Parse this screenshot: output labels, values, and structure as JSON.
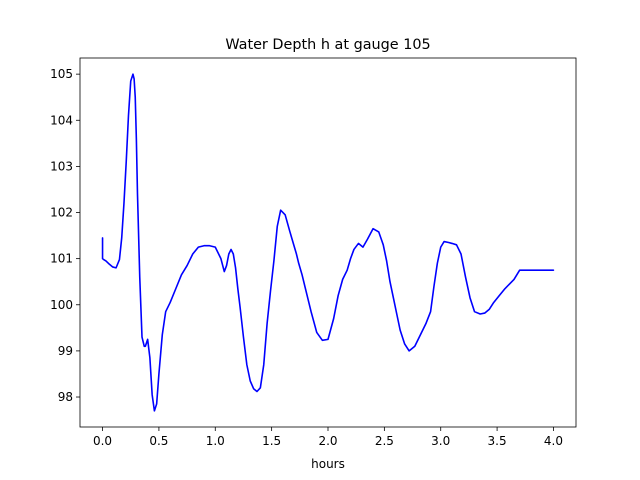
{
  "chart_data": {
    "type": "line",
    "title": "Water Depth h at gauge 105",
    "xlabel": "hours",
    "ylabel": "",
    "xlim": [
      -0.2,
      4.2
    ],
    "ylim": [
      97.35,
      105.35
    ],
    "xticks": [
      {
        "value": 0.0,
        "label": "0.0"
      },
      {
        "value": 0.5,
        "label": "0.5"
      },
      {
        "value": 1.0,
        "label": "1.0"
      },
      {
        "value": 1.5,
        "label": "1.5"
      },
      {
        "value": 2.0,
        "label": "2.0"
      },
      {
        "value": 2.5,
        "label": "2.5"
      },
      {
        "value": 3.0,
        "label": "3.0"
      },
      {
        "value": 3.5,
        "label": "3.5"
      },
      {
        "value": 4.0,
        "label": "4.0"
      }
    ],
    "yticks": [
      {
        "value": 98,
        "label": "98"
      },
      {
        "value": 99,
        "label": "99"
      },
      {
        "value": 100,
        "label": "100"
      },
      {
        "value": 101,
        "label": "101"
      },
      {
        "value": 102,
        "label": "102"
      },
      {
        "value": 103,
        "label": "103"
      },
      {
        "value": 104,
        "label": "104"
      },
      {
        "value": 105,
        "label": "105"
      }
    ],
    "grid": false,
    "series": [
      {
        "color": "#0000ff",
        "x": [
          0.0,
          0.0,
          0.01,
          0.03,
          0.06,
          0.09,
          0.12,
          0.15,
          0.17,
          0.19,
          0.21,
          0.23,
          0.25,
          0.27,
          0.28,
          0.29,
          0.3,
          0.31,
          0.33,
          0.35,
          0.37,
          0.38,
          0.4,
          0.42,
          0.44,
          0.46,
          0.48,
          0.5,
          0.53,
          0.56,
          0.6,
          0.65,
          0.7,
          0.75,
          0.8,
          0.85,
          0.9,
          0.95,
          1.0,
          1.05,
          1.08,
          1.1,
          1.12,
          1.14,
          1.16,
          1.18,
          1.2,
          1.22,
          1.25,
          1.28,
          1.31,
          1.34,
          1.37,
          1.4,
          1.43,
          1.46,
          1.49,
          1.52,
          1.55,
          1.58,
          1.62,
          1.66,
          1.69,
          1.72,
          1.74,
          1.77,
          1.8,
          1.85,
          1.9,
          1.95,
          2.0,
          2.05,
          2.09,
          2.13,
          2.17,
          2.2,
          2.23,
          2.27,
          2.31,
          2.35,
          2.4,
          2.45,
          2.49,
          2.52,
          2.55,
          2.58,
          2.61,
          2.64,
          2.68,
          2.72,
          2.77,
          2.82,
          2.87,
          2.91,
          2.94,
          2.97,
          3.0,
          3.03,
          3.07,
          3.1,
          3.14,
          3.18,
          3.22,
          3.26,
          3.3,
          3.35,
          3.39,
          3.43,
          3.47,
          3.52,
          3.57,
          3.61,
          3.65,
          3.7,
          3.75,
          3.8,
          3.85,
          3.9,
          3.95,
          4.0
        ],
        "y": [
          101.45,
          101.0,
          100.98,
          100.95,
          100.88,
          100.82,
          100.8,
          100.98,
          101.45,
          102.2,
          103.1,
          104.1,
          104.85,
          105.0,
          104.9,
          104.5,
          103.6,
          102.4,
          100.6,
          99.3,
          99.1,
          99.1,
          99.25,
          98.85,
          98.05,
          97.7,
          97.85,
          98.5,
          99.35,
          99.85,
          100.05,
          100.35,
          100.65,
          100.85,
          101.1,
          101.25,
          101.28,
          101.28,
          101.25,
          101.0,
          100.72,
          100.85,
          101.1,
          101.2,
          101.1,
          100.8,
          100.35,
          99.95,
          99.3,
          98.7,
          98.35,
          98.18,
          98.12,
          98.2,
          98.7,
          99.6,
          100.3,
          100.95,
          101.7,
          102.05,
          101.95,
          101.6,
          101.35,
          101.1,
          100.9,
          100.65,
          100.35,
          99.85,
          99.4,
          99.23,
          99.25,
          99.7,
          100.2,
          100.55,
          100.75,
          101.0,
          101.2,
          101.33,
          101.25,
          101.42,
          101.65,
          101.58,
          101.3,
          100.95,
          100.5,
          100.15,
          99.8,
          99.45,
          99.15,
          99.0,
          99.1,
          99.35,
          99.6,
          99.85,
          100.4,
          100.9,
          101.25,
          101.37,
          101.35,
          101.33,
          101.3,
          101.1,
          100.6,
          100.15,
          99.85,
          99.8,
          99.82,
          99.9,
          100.05,
          100.2,
          100.35,
          100.45,
          100.55,
          100.75,
          100.75,
          100.75,
          100.75,
          100.75,
          100.75,
          100.75
        ]
      }
    ]
  }
}
